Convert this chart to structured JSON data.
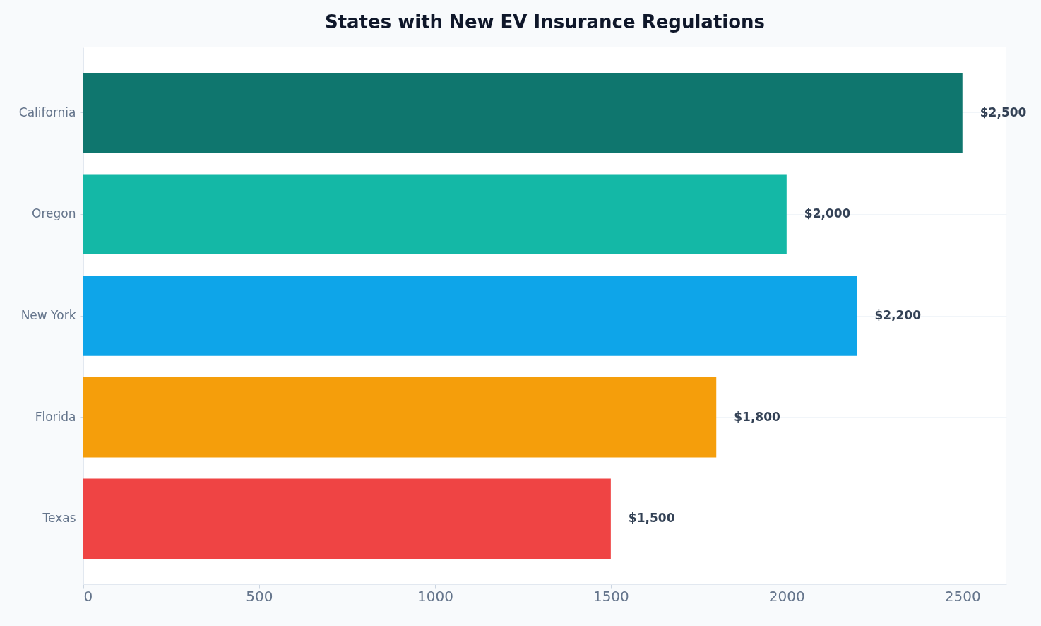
{
  "chart_data": {
    "type": "bar",
    "orientation": "horizontal",
    "title": "States with New EV Insurance Regulations",
    "categories": [
      "California",
      "Oregon",
      "New York",
      "Florida",
      "Texas"
    ],
    "values": [
      2500,
      2000,
      2200,
      1800,
      1500
    ],
    "colors": [
      "#0f766e",
      "#14b8a6",
      "#0ea5e9",
      "#f59e0b",
      "#ef4444"
    ],
    "value_labels": [
      "$2,500",
      "$2,000",
      "$2,200",
      "$1,800",
      "$1,500"
    ],
    "xlim": [
      0,
      2625
    ],
    "xticks": [
      0,
      500,
      1000,
      1500,
      2000,
      2500
    ],
    "grid": "y",
    "legend": false
  }
}
